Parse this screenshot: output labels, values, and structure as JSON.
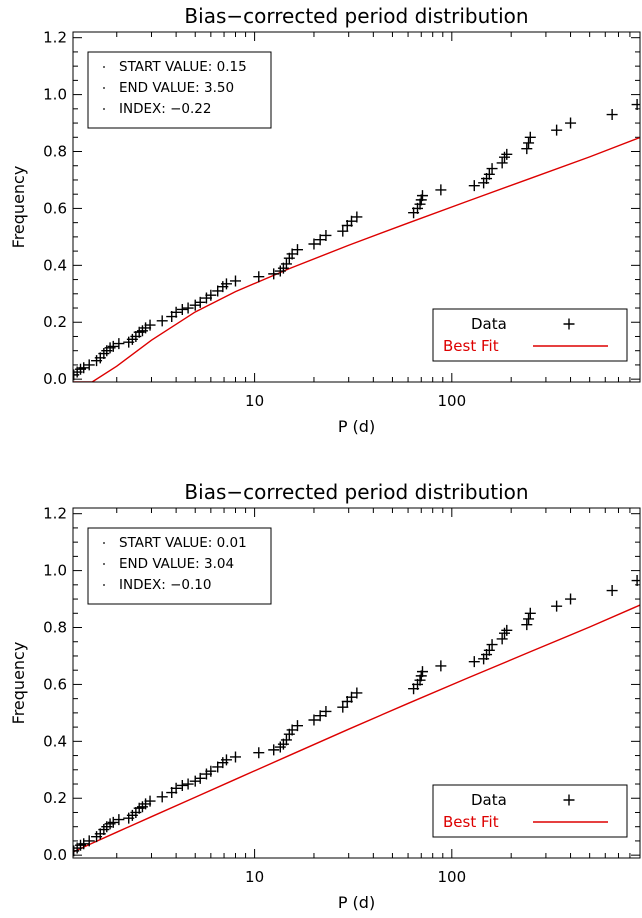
{
  "colors": {
    "data": "#000000",
    "fit": "#dd0000",
    "axis": "#000000"
  },
  "chart_data": [
    {
      "type": "scatter",
      "title": "Bias−corrected period distribution",
      "xlabel": "P (d)",
      "ylabel": "Frequency",
      "xscale": "log",
      "xlim": [
        1.2,
        900
      ],
      "ylim": [
        -0.01,
        1.22
      ],
      "xticks": [
        10,
        100
      ],
      "xtick_labels": [
        "10",
        "100"
      ],
      "yticks": [
        0.0,
        0.2,
        0.4,
        0.6,
        0.8,
        1.0,
        1.2
      ],
      "ytick_labels": [
        "0.0",
        "0.2",
        "0.4",
        "0.6",
        "0.8",
        "1.0",
        "1.2"
      ],
      "annotation_box": {
        "placement": "top-left",
        "lines": [
          "START VALUE: 0.15",
          "END VALUE: 3.50",
          "INDEX: −0.22"
        ]
      },
      "legend": {
        "placement": "bottom-right",
        "entries": [
          {
            "label": "Data",
            "marker": "plus"
          },
          {
            "label": "Best Fit",
            "marker": "line"
          }
        ]
      },
      "series": [
        {
          "kind": "data",
          "x": [
            1.21,
            1.26,
            1.31,
            1.36,
            1.45,
            1.58,
            1.65,
            1.72,
            1.78,
            1.85,
            1.92,
            2.05,
            2.3,
            2.4,
            2.5,
            2.6,
            2.7,
            2.8,
            2.95,
            3.4,
            3.8,
            4.0,
            4.3,
            4.6,
            5.0,
            5.3,
            5.7,
            6.0,
            6.5,
            6.9,
            7.2,
            8.0,
            10.5,
            12.5,
            13.5,
            14.0,
            14.5,
            15.0,
            15.5,
            16.5,
            20.0,
            21.5,
            23.0,
            28.0,
            29.5,
            31.0,
            33.0,
            64.0,
            67.0,
            69.0,
            70.0,
            71.0,
            88.0,
            130.0,
            145.0,
            150.0,
            155.0,
            160.0,
            180.0,
            185.0,
            190.0,
            240.0,
            245.0,
            250.0,
            340.0,
            400.0,
            650.0,
            870.0
          ],
          "y": [
            0.015,
            0.025,
            0.035,
            0.04,
            0.05,
            0.065,
            0.075,
            0.09,
            0.1,
            0.11,
            0.115,
            0.125,
            0.13,
            0.14,
            0.15,
            0.165,
            0.17,
            0.18,
            0.19,
            0.205,
            0.22,
            0.235,
            0.245,
            0.25,
            0.26,
            0.27,
            0.285,
            0.295,
            0.31,
            0.325,
            0.335,
            0.345,
            0.36,
            0.37,
            0.38,
            0.39,
            0.405,
            0.425,
            0.44,
            0.455,
            0.475,
            0.49,
            0.505,
            0.52,
            0.54,
            0.555,
            0.57,
            0.585,
            0.6,
            0.615,
            0.63,
            0.645,
            0.665,
            0.68,
            0.69,
            0.705,
            0.72,
            0.74,
            0.76,
            0.78,
            0.79,
            0.81,
            0.83,
            0.85,
            0.875,
            0.9,
            0.93,
            0.965
          ]
        },
        {
          "kind": "fit",
          "x": [
            1.2,
            1.5,
            2.0,
            3.0,
            5.0,
            8.0,
            15.0,
            30.0,
            60.0,
            120.0,
            250.0,
            500.0,
            900.0
          ],
          "y": [
            -0.01,
            -0.01,
            0.0455,
            0.1371,
            0.2361,
            0.3076,
            0.3884,
            0.4706,
            0.5485,
            0.6253,
            0.7053,
            0.7812,
            0.8492
          ]
        }
      ]
    },
    {
      "type": "scatter",
      "title": "Bias−corrected period distribution",
      "xlabel": "P (d)",
      "ylabel": "Frequency",
      "xscale": "log",
      "xlim": [
        1.2,
        900
      ],
      "ylim": [
        -0.01,
        1.22
      ],
      "xticks": [
        10,
        100
      ],
      "xtick_labels": [
        "10",
        "100"
      ],
      "yticks": [
        0.0,
        0.2,
        0.4,
        0.6,
        0.8,
        1.0,
        1.2
      ],
      "ytick_labels": [
        "0.0",
        "0.2",
        "0.4",
        "0.6",
        "0.8",
        "1.0",
        "1.2"
      ],
      "annotation_box": {
        "placement": "top-left",
        "lines": [
          "START VALUE: 0.01",
          "END VALUE: 3.04",
          "INDEX: −0.10"
        ]
      },
      "legend": {
        "placement": "bottom-right",
        "entries": [
          {
            "label": "Data",
            "marker": "plus"
          },
          {
            "label": "Best Fit",
            "marker": "line"
          }
        ]
      },
      "series": [
        {
          "kind": "data",
          "x": [
            1.21,
            1.26,
            1.31,
            1.36,
            1.45,
            1.58,
            1.65,
            1.72,
            1.78,
            1.85,
            1.92,
            2.05,
            2.3,
            2.4,
            2.5,
            2.6,
            2.7,
            2.8,
            2.95,
            3.4,
            3.8,
            4.0,
            4.3,
            4.6,
            5.0,
            5.3,
            5.7,
            6.0,
            6.5,
            6.9,
            7.2,
            8.0,
            10.5,
            12.5,
            13.5,
            14.0,
            14.5,
            15.0,
            15.5,
            16.5,
            20.0,
            21.5,
            23.0,
            28.0,
            29.5,
            31.0,
            33.0,
            64.0,
            67.0,
            69.0,
            70.0,
            71.0,
            88.0,
            130.0,
            145.0,
            150.0,
            155.0,
            160.0,
            180.0,
            185.0,
            190.0,
            240.0,
            245.0,
            250.0,
            340.0,
            400.0,
            650.0,
            870.0
          ],
          "y": [
            0.015,
            0.025,
            0.035,
            0.04,
            0.05,
            0.065,
            0.075,
            0.09,
            0.1,
            0.11,
            0.115,
            0.125,
            0.13,
            0.14,
            0.15,
            0.165,
            0.17,
            0.18,
            0.19,
            0.205,
            0.22,
            0.235,
            0.245,
            0.25,
            0.26,
            0.27,
            0.285,
            0.295,
            0.31,
            0.325,
            0.335,
            0.345,
            0.36,
            0.37,
            0.38,
            0.39,
            0.405,
            0.425,
            0.44,
            0.455,
            0.475,
            0.49,
            0.505,
            0.52,
            0.54,
            0.555,
            0.57,
            0.585,
            0.6,
            0.615,
            0.63,
            0.645,
            0.665,
            0.68,
            0.69,
            0.705,
            0.72,
            0.74,
            0.76,
            0.78,
            0.79,
            0.81,
            0.83,
            0.85,
            0.875,
            0.9,
            0.93,
            0.965
          ]
        },
        {
          "kind": "fit",
          "x": [
            1.2,
            1.5,
            2.0,
            3.0,
            5.0,
            8.0,
            15.0,
            30.0,
            60.0,
            120.0,
            250.0,
            500.0,
            900.0
          ],
          "y": [
            0.0112,
            0.042,
            0.0807,
            0.1352,
            0.2035,
            0.2665,
            0.3504,
            0.4427,
            0.5332,
            0.6222,
            0.7147,
            0.8017,
            0.8789
          ]
        }
      ]
    }
  ]
}
